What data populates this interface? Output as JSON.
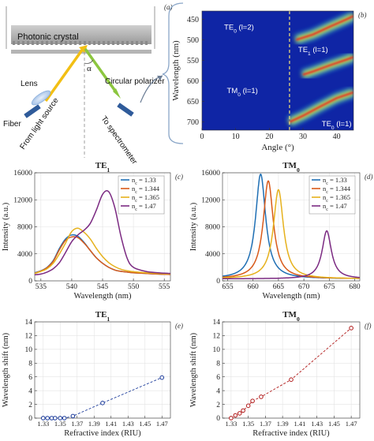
{
  "schematic": {
    "panel_letter": "(a)",
    "photonic_crystal_label": "Photonic crystal",
    "lens_label": "Lens",
    "fiber_label": "Fiber",
    "light_source_label": "From light source",
    "polarizer_label": "Circular polarizer",
    "spectrometer_label": "To spectrometer",
    "angle_symbol": "α"
  },
  "chart_data": [
    {
      "id": "b",
      "type": "heatmap",
      "panel_letter": "(b)",
      "xlabel": "Angle (°)",
      "ylabel": "Wavelength (nm)",
      "xlim": [
        0,
        45
      ],
      "ylim": [
        430,
        720
      ],
      "y_inverted": true,
      "xticks": [
        0,
        10,
        20,
        30,
        40
      ],
      "yticks": [
        450,
        500,
        550,
        600,
        650,
        700
      ],
      "marker_x": 26,
      "colormap": "jet",
      "mode_labels": [
        {
          "text": "TE0 (l=2)",
          "x": 11,
          "y": 475
        },
        {
          "text": "TE1 (l=1)",
          "x": 33,
          "y": 530
        },
        {
          "text": "TM0 (l=1)",
          "x": 12,
          "y": 630
        },
        {
          "text": "TE0 (l=1)",
          "x": 40,
          "y": 710
        }
      ],
      "bands": [
        {
          "x": [
            28,
            33,
            38,
            43,
            45
          ],
          "y": [
            500,
            487,
            468,
            450,
            442
          ]
        },
        {
          "x": [
            30,
            33,
            38,
            43,
            45
          ],
          "y": [
            585,
            577,
            562,
            548,
            542
          ]
        },
        {
          "x": [
            26,
            30,
            35,
            40,
            45
          ],
          "y": [
            700,
            685,
            663,
            642,
            628
          ]
        }
      ]
    },
    {
      "id": "c",
      "type": "line",
      "panel_letter": "(c)",
      "title": "TE1",
      "xlabel": "Wavelength (nm)",
      "ylabel": "Intensity (a.u.)",
      "xlim": [
        534,
        556
      ],
      "ylim": [
        0,
        16000
      ],
      "xticks": [
        535,
        540,
        545,
        550,
        555
      ],
      "yticks": [
        0,
        4000,
        8000,
        12000,
        16000
      ],
      "x": [
        534,
        535,
        536,
        537,
        538,
        539,
        540,
        541,
        542,
        543,
        544,
        545,
        546,
        547,
        548,
        549,
        550,
        552,
        554,
        556
      ],
      "series": [
        {
          "name": "nc = 1.33",
          "color": "#1f6fb4",
          "values": [
            1200,
            1500,
            2000,
            3000,
            4800,
            6200,
            6800,
            6600,
            5700,
            4500,
            3400,
            2600,
            2000,
            1600,
            1400,
            1300,
            1200,
            1100,
            1000,
            950
          ]
        },
        {
          "name": "nc = 1.344",
          "color": "#d85a1a",
          "values": [
            1150,
            1450,
            1950,
            2900,
            4600,
            6000,
            6500,
            6400,
            5600,
            4500,
            3400,
            2600,
            2000,
            1600,
            1400,
            1300,
            1200,
            1100,
            1000,
            950
          ]
        },
        {
          "name": "nc = 1.365",
          "color": "#e6b11c",
          "values": [
            1100,
            1400,
            1800,
            2600,
            4000,
            5600,
            7300,
            7800,
            7200,
            6200,
            4800,
            3600,
            2700,
            2100,
            1700,
            1500,
            1350,
            1200,
            1100,
            1000
          ]
        },
        {
          "name": "nc = 1.47",
          "color": "#7b2a82",
          "values": [
            900,
            1000,
            1300,
            1800,
            2700,
            4200,
            5800,
            6800,
            7500,
            8500,
            10500,
            12800,
            13200,
            10800,
            6500,
            3300,
            2000,
            1400,
            1200,
            1100
          ]
        }
      ]
    },
    {
      "id": "d",
      "type": "line",
      "panel_letter": "(d)",
      "title": "TM0",
      "xlabel": "Wavelength (nm)",
      "ylabel": "Intensity (a.u.)",
      "xlim": [
        654,
        681
      ],
      "ylim": [
        0,
        16000
      ],
      "xticks": [
        655,
        660,
        665,
        670,
        675,
        680
      ],
      "yticks": [
        0,
        4000,
        8000,
        12000,
        16000
      ],
      "series": [
        {
          "name": "nc = 1.33",
          "color": "#1f6fb4",
          "peak": 661.5,
          "height": 15500,
          "width": 1.2
        },
        {
          "name": "nc = 1.344",
          "color": "#d85a1a",
          "peak": 663.0,
          "height": 14500,
          "width": 1.2
        },
        {
          "name": "nc = 1.365",
          "color": "#e6b11c",
          "peak": 665.0,
          "height": 13200,
          "width": 1.2
        },
        {
          "name": "nc = 1.47",
          "color": "#7b2a82",
          "peak": 674.5,
          "height": 7100,
          "width": 1.1
        }
      ]
    },
    {
      "id": "e",
      "type": "scatter",
      "panel_letter": "(e)",
      "title": "TE1",
      "xlabel": "Refractive index (RIU)",
      "ylabel": "Wavelength shift (nm)",
      "xlim": [
        1.32,
        1.48
      ],
      "ylim": [
        0,
        14
      ],
      "xticks": [
        "1.33",
        "1.35",
        "1.37",
        "1.39",
        "1.41",
        "1.43",
        "1.45",
        "1.47"
      ],
      "yticks": [
        0,
        2,
        4,
        6,
        8,
        10,
        12,
        14
      ],
      "color": "#1a3a9a",
      "x": [
        1.33,
        1.335,
        1.34,
        1.344,
        1.35,
        1.355,
        1.365,
        1.4,
        1.47
      ],
      "y": [
        0,
        0,
        0,
        0,
        0,
        0,
        0.3,
        2.2,
        5.9
      ]
    },
    {
      "id": "f",
      "type": "scatter",
      "panel_letter": "(f)",
      "title": "TM0",
      "xlabel": "Refractive index (RIU)",
      "ylabel": "Wavelength shift (nm)",
      "xlim": [
        1.32,
        1.48
      ],
      "ylim": [
        0,
        14
      ],
      "xticks": [
        "1.33",
        "1.35",
        "1.37",
        "1.39",
        "1.41",
        "1.43",
        "1.45",
        "1.47"
      ],
      "yticks": [
        0,
        2,
        4,
        6,
        8,
        10,
        12,
        14
      ],
      "color": "#b01818",
      "x": [
        1.33,
        1.335,
        1.34,
        1.344,
        1.35,
        1.355,
        1.365,
        1.4,
        1.47
      ],
      "y": [
        0,
        0.4,
        0.7,
        1.1,
        1.8,
        2.5,
        3.1,
        5.6,
        13.1
      ]
    }
  ]
}
